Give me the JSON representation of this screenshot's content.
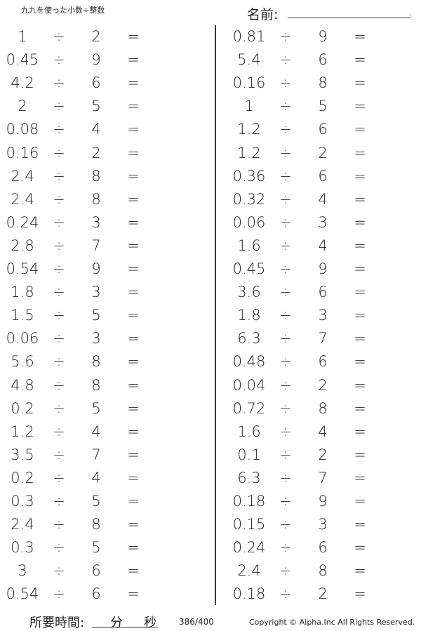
{
  "header": {
    "title": "九九を使った小数÷整数",
    "name_label": "名前:",
    "name_end": "."
  },
  "operator": "÷",
  "equals": "=",
  "left": [
    [
      "1",
      "2"
    ],
    [
      "0.45",
      "9"
    ],
    [
      "4.2",
      "6"
    ],
    [
      "2",
      "5"
    ],
    [
      "0.08",
      "4"
    ],
    [
      "0.16",
      "2"
    ],
    [
      "2.4",
      "8"
    ],
    [
      "2.4",
      "8"
    ],
    [
      "0.24",
      "3"
    ],
    [
      "2.8",
      "7"
    ],
    [
      "0.54",
      "9"
    ],
    [
      "1.8",
      "3"
    ],
    [
      "1.5",
      "5"
    ],
    [
      "0.06",
      "3"
    ],
    [
      "5.6",
      "8"
    ],
    [
      "4.8",
      "8"
    ],
    [
      "0.2",
      "5"
    ],
    [
      "1.2",
      "4"
    ],
    [
      "3.5",
      "7"
    ],
    [
      "0.2",
      "4"
    ],
    [
      "0.3",
      "5"
    ],
    [
      "2.4",
      "8"
    ],
    [
      "0.3",
      "5"
    ],
    [
      "3",
      "6"
    ],
    [
      "0.54",
      "6"
    ]
  ],
  "right": [
    [
      "0.81",
      "9"
    ],
    [
      "5.4",
      "6"
    ],
    [
      "0.16",
      "8"
    ],
    [
      "1",
      "5"
    ],
    [
      "1.2",
      "6"
    ],
    [
      "1.2",
      "2"
    ],
    [
      "0.36",
      "6"
    ],
    [
      "0.32",
      "4"
    ],
    [
      "0.06",
      "3"
    ],
    [
      "1.6",
      "4"
    ],
    [
      "0.45",
      "9"
    ],
    [
      "3.6",
      "6"
    ],
    [
      "1.8",
      "3"
    ],
    [
      "6.3",
      "7"
    ],
    [
      "0.48",
      "6"
    ],
    [
      "0.04",
      "2"
    ],
    [
      "0.72",
      "8"
    ],
    [
      "1.6",
      "4"
    ],
    [
      "0.1",
      "2"
    ],
    [
      "6.3",
      "7"
    ],
    [
      "0.18",
      "9"
    ],
    [
      "0.15",
      "3"
    ],
    [
      "0.24",
      "6"
    ],
    [
      "2.4",
      "8"
    ],
    [
      "0.18",
      "2"
    ]
  ],
  "footer": {
    "time_label": "所要時間:",
    "minutes": "分",
    "seconds": "秒",
    "page": "386/400",
    "copyright": "Copyright © Alpha.Inc All Rights Reserved."
  }
}
